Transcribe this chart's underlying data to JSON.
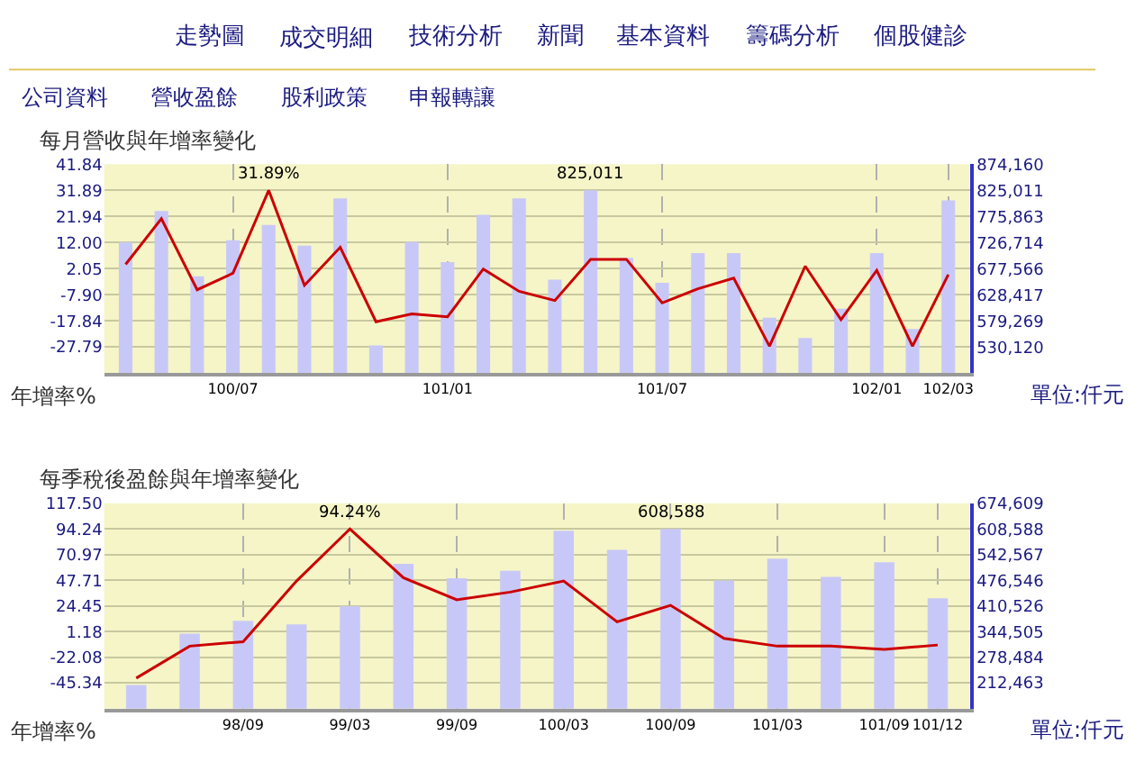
{
  "chart_data": [
    {
      "type": "bar",
      "title": "每月營收與年增率變化",
      "ylabel": "年增率%",
      "y2label": "單位:仟元",
      "annotations": [
        "走勢圖",
        "成交明細",
        "技術分析",
        "新聞",
        "基本資料",
        "籌碼分析",
        "個股健診",
        "公司資料",
        "營收盈餘",
        "股利政策",
        "申報轉讓"
      ],
      "categories": [
        null,
        null,
        null,
        "100/07",
        null,
        null,
        null,
        null,
        null,
        "101/01",
        null,
        null,
        null,
        null,
        null,
        "101/07",
        null,
        null,
        null,
        null,
        null,
        "102/01",
        null,
        "102/03"
      ],
      "series": [
        {
          "axis": "y2",
          "color": "#c8c8f8",
          "values": [
            727000,
            786000,
            663000,
            731000,
            760000,
            721000,
            810000,
            533000,
            728000,
            690000,
            779000,
            810000,
            657000,
            825011,
            698000,
            651000,
            707000,
            707000,
            585000,
            547000,
            602000,
            707000,
            564000,
            806000
          ],
          "value_labels": [
            null,
            null,
            null,
            null,
            null,
            null,
            null,
            null,
            null,
            null,
            null,
            null,
            null,
            "825,011",
            null,
            null,
            null,
            null,
            null,
            null,
            null,
            null,
            null,
            null
          ]
        },
        {
          "type": "line",
          "color": "#cc0000",
          "values": [
            3.7,
            21.1,
            -6.0,
            0.3,
            31.89,
            -4.3,
            10.2,
            -18.2,
            -15.2,
            -16.3,
            1.9,
            -6.6,
            -10.1,
            5.6,
            5.6,
            -11.0,
            -5.6,
            -1.6,
            -27.5,
            3.0,
            -17.4,
            1.4,
            -27.5,
            -0.2
          ],
          "value_labels": [
            null,
            null,
            null,
            null,
            "31.89%",
            null,
            null,
            null,
            null,
            null,
            null,
            null,
            null,
            null,
            null,
            null,
            null,
            null,
            null,
            null,
            null,
            null,
            null,
            null
          ]
        }
      ],
      "ylim": [
        -37.74,
        41.84
      ],
      "yticks": [
        41.84,
        31.89,
        21.94,
        {
          "value": 12.0,
          "label": "12.00"
        },
        2.05,
        {
          "value": -7.9,
          "label": "-7.90"
        },
        -17.84,
        -27.79
      ],
      "y2lim": [
        480972,
        874160
      ],
      "y2ticks": [
        {
          "value": 874160,
          "label": "874,160"
        },
        {
          "value": 825011,
          "label": "825,011"
        },
        {
          "value": 775863,
          "label": "775,863"
        },
        {
          "value": 726714,
          "label": "726,714"
        },
        {
          "value": 677566,
          "label": "677,566"
        },
        {
          "value": 628417,
          "label": "628,417"
        },
        {
          "value": 579269,
          "label": "579,269"
        },
        {
          "value": 530120,
          "label": "530,120"
        }
      ],
      "grid": true
    },
    {
      "type": "bar",
      "title": "每季稅後盈餘與年增率變化",
      "ylabel": "年增率%",
      "y2label": "單位:仟元",
      "categories": [
        null,
        null,
        "98/09",
        null,
        "99/03",
        null,
        "99/09",
        null,
        "100/03",
        null,
        "100/09",
        null,
        "101/03",
        null,
        "101/09",
        "101/12"
      ],
      "series": [
        {
          "axis": "y2",
          "color": "#c8c8f8",
          "values": [
            207000,
            339000,
            372000,
            363000,
            410000,
            519000,
            482000,
            501000,
            604000,
            555000,
            608588,
            476000,
            532000,
            485000,
            523000,
            430000
          ],
          "value_labels": [
            null,
            null,
            null,
            null,
            null,
            null,
            null,
            null,
            null,
            null,
            "608,588",
            null,
            null,
            null,
            null,
            null
          ]
        },
        {
          "type": "line",
          "color": "#cc0000",
          "values": [
            -41,
            -12,
            -8,
            47,
            94.24,
            50,
            30,
            37,
            47,
            10,
            25,
            -5,
            -12,
            -12,
            -15,
            -11
          ],
          "value_labels": [
            null,
            null,
            null,
            null,
            "94.24%",
            null,
            null,
            null,
            null,
            null,
            null,
            null,
            null,
            null,
            null,
            null
          ]
        }
      ],
      "ylim": [
        -68.6,
        117.5
      ],
      "yticks": [
        {
          "value": 117.5,
          "label": "117.50"
        },
        94.24,
        70.97,
        47.71,
        24.45,
        1.18,
        -22.08,
        -45.34
      ],
      "y2lim": [
        146442,
        674609
      ],
      "y2ticks": [
        {
          "value": 674609,
          "label": "674,609"
        },
        {
          "value": 608588,
          "label": "608,588"
        },
        {
          "value": 542567,
          "label": "542,567"
        },
        {
          "value": 476546,
          "label": "476,546"
        },
        {
          "value": 410526,
          "label": "410,526"
        },
        {
          "value": 344505,
          "label": "344,505"
        },
        {
          "value": 278484,
          "label": "278,484"
        },
        {
          "value": 212463,
          "label": "212,463"
        }
      ],
      "grid": true
    }
  ]
}
